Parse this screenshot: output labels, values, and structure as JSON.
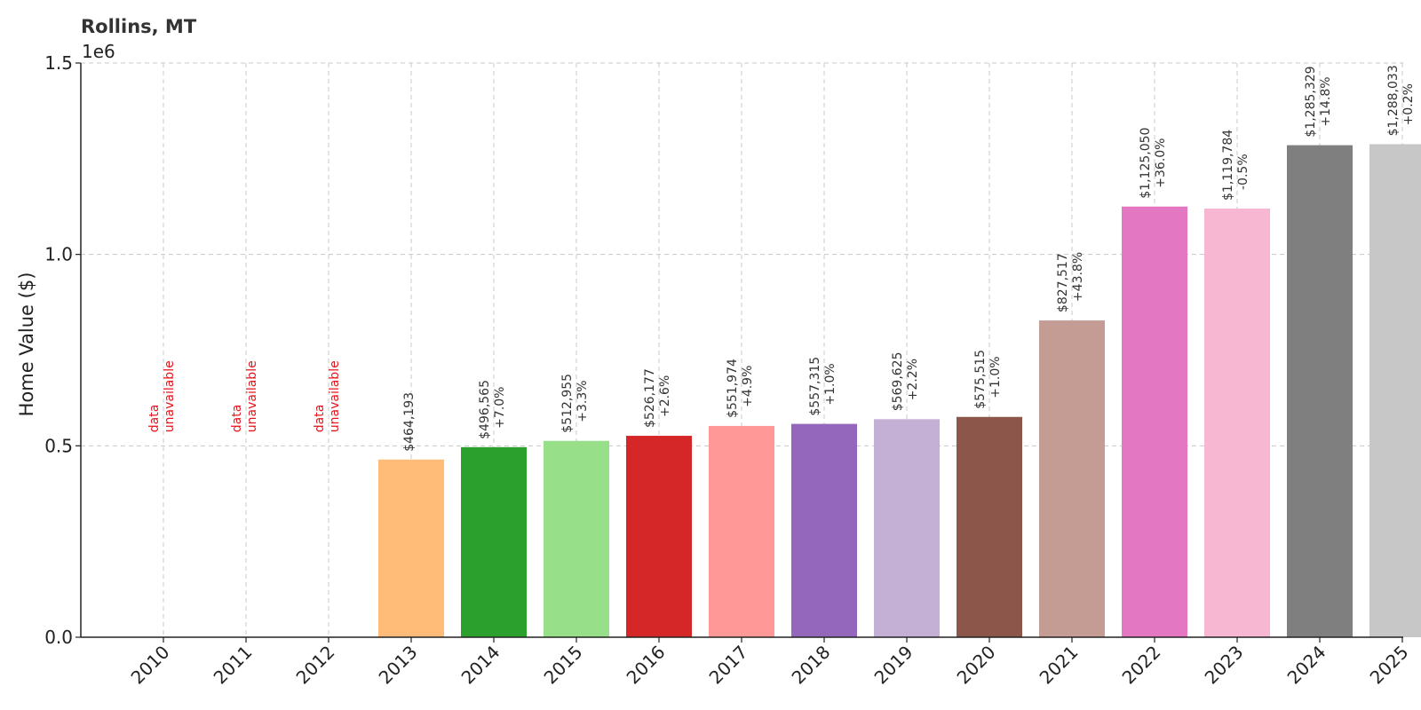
{
  "chart_data": {
    "type": "bar",
    "title": "Rollins, MT",
    "ylabel": "Home Value ($)",
    "xlabel": "",
    "y_offset_text": "1e6",
    "ylim": [
      0,
      1500000
    ],
    "yticks": [
      0,
      500000,
      1000000,
      1500000
    ],
    "ytick_labels": [
      "0.0",
      "0.5",
      "1.0",
      "1.5"
    ],
    "grid": true,
    "categories": [
      "2010",
      "2011",
      "2012",
      "2013",
      "2014",
      "2015",
      "2016",
      "2017",
      "2018",
      "2019",
      "2020",
      "2021",
      "2022",
      "2023",
      "2024",
      "2025"
    ],
    "values": [
      null,
      null,
      null,
      464193,
      496565,
      512955,
      526177,
      551974,
      557315,
      569625,
      575515,
      827517,
      1125050,
      1119784,
      1285329,
      1288033
    ],
    "value_labels": [
      "",
      "",
      "",
      "$464,193",
      "$496,565",
      "$512,955",
      "$526,177",
      "$551,974",
      "$557,315",
      "$569,625",
      "$575,515",
      "$827,517",
      "$1,125,050",
      "$1,119,784",
      "$1,285,329",
      "$1,288,033"
    ],
    "change_labels": [
      "",
      "",
      "",
      "",
      "+7.0%",
      "+3.3%",
      "+2.6%",
      "+4.9%",
      "+1.0%",
      "+2.2%",
      "+1.0%",
      "+43.8%",
      "+36.0%",
      "-0.5%",
      "+14.8%",
      "+0.2%"
    ],
    "unavailable_label": [
      "data",
      "unavailable"
    ],
    "colors": [
      "#1f77b4",
      "#aec7e8",
      "#ff7f0e",
      "#ffbb78",
      "#2ca02c",
      "#98df8a",
      "#d62728",
      "#ff9896",
      "#9467bd",
      "#c5b0d5",
      "#8c564b",
      "#c49c94",
      "#e377c2",
      "#f7b6d2",
      "#7f7f7f",
      "#c7c7c7"
    ],
    "unavailable_color": "#e8141c"
  }
}
